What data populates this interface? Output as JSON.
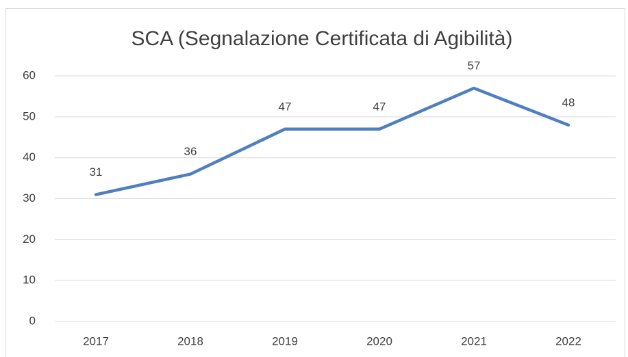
{
  "chart_data": {
    "type": "line",
    "title": "SCA (Segnalazione Certificata di Agibilità)",
    "categories": [
      "2017",
      "2018",
      "2019",
      "2020",
      "2021",
      "2022"
    ],
    "series": [
      {
        "name": "SCA",
        "color": "#4f7fbf",
        "values": [
          31,
          36,
          47,
          47,
          57,
          48
        ]
      }
    ],
    "ylim": [
      0,
      60
    ],
    "yticks": [
      0,
      10,
      20,
      30,
      40,
      50,
      60
    ],
    "grid": true,
    "data_labels": true,
    "legend": false
  }
}
